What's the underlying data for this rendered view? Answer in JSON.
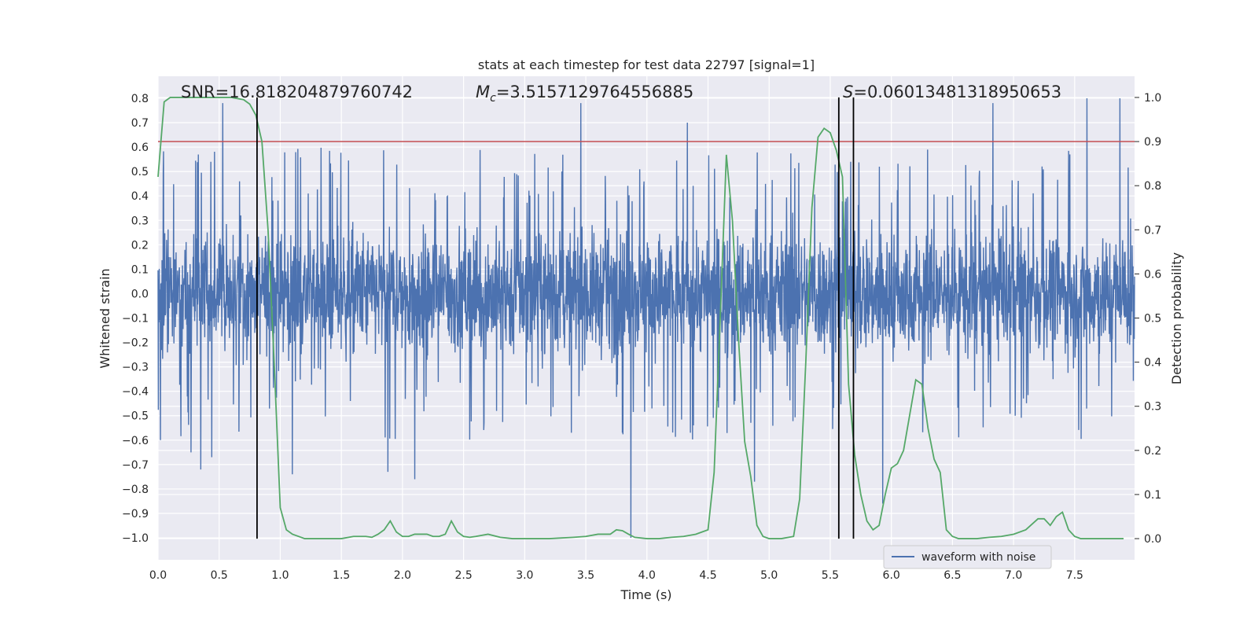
{
  "chart_data": {
    "type": "line",
    "title": "stats at each timestep for test data 22797 [signal=1]",
    "xlabel": "Time (s)",
    "ylabel": "Whitened strain",
    "y2label": "Detection probability",
    "xlim": [
      0.0,
      7.99
    ],
    "ylim": [
      -1.09,
      0.89
    ],
    "y2lim": [
      -0.048,
      1.048
    ],
    "grid": true,
    "legend_position": "bottom-right",
    "x_ticks": [
      "0.0",
      "0.5",
      "1.0",
      "1.5",
      "2.0",
      "2.5",
      "3.0",
      "3.5",
      "4.0",
      "4.5",
      "5.0",
      "5.5",
      "6.0",
      "6.5",
      "7.0",
      "7.5"
    ],
    "y_ticks": [
      "0.8",
      "0.7",
      "0.6",
      "0.5",
      "0.4",
      "0.3",
      "0.2",
      "0.1",
      "0.0",
      "−0.1",
      "−0.2",
      "−0.3",
      "−0.4",
      "−0.5",
      "−0.6",
      "−0.7",
      "−0.8",
      "−0.9",
      "−1.0"
    ],
    "y2_ticks": [
      "1.0",
      "0.9",
      "0.8",
      "0.7",
      "0.6",
      "0.5",
      "0.4",
      "0.3",
      "0.2",
      "0.1",
      "0.0"
    ],
    "annotations": {
      "snr": "SNR=16.818204879760742",
      "mc_symbol": "M",
      "mc_sub": "c",
      "mc_value": "=3.5157129764556885",
      "s_symbol": "S",
      "s_value": "=0.06013481318950653"
    },
    "vertical_lines_x": [
      0.81,
      5.57,
      5.69
    ],
    "threshold_y2": 0.9,
    "series": [
      {
        "name": "waveform with noise",
        "color": "#4c72b0",
        "description_envelope": {
          "x": [
            0.0,
            0.5,
            1.0,
            1.5,
            2.0,
            2.5,
            3.0,
            3.5,
            4.0,
            4.5,
            5.0,
            5.5,
            6.0,
            6.5,
            7.0,
            7.5,
            7.99
          ],
          "typical_max": [
            0.45,
            0.45,
            0.45,
            0.45,
            0.45,
            0.45,
            0.45,
            0.45,
            0.45,
            0.45,
            0.45,
            0.45,
            0.45,
            0.45,
            0.45,
            0.45,
            0.45
          ],
          "typical_min": [
            -0.45,
            -0.45,
            -0.45,
            -0.45,
            -0.45,
            -0.45,
            -0.45,
            -0.45,
            -0.45,
            -0.45,
            -0.45,
            -0.45,
            -0.45,
            -0.45,
            -0.45,
            -0.45,
            -0.45
          ]
        },
        "spikes": [
          {
            "x": 0.02,
            "y": -0.6
          },
          {
            "x": 0.27,
            "y": -0.65
          },
          {
            "x": 0.35,
            "y": -0.72
          },
          {
            "x": 0.44,
            "y": -0.67
          },
          {
            "x": 1.1,
            "y": -0.74
          },
          {
            "x": 1.88,
            "y": -0.73
          },
          {
            "x": 2.1,
            "y": -0.76
          },
          {
            "x": 3.46,
            "y": 0.78
          },
          {
            "x": 3.87,
            "y": -1.0
          },
          {
            "x": 4.88,
            "y": -0.77
          },
          {
            "x": 5.93,
            "y": -0.86
          },
          {
            "x": 7.6,
            "y": 0.8
          },
          {
            "x": 7.87,
            "y": 0.8
          },
          {
            "x": 0.53,
            "y": 0.78
          },
          {
            "x": 4.33,
            "y": 0.7
          },
          {
            "x": 6.83,
            "y": 0.78
          }
        ]
      },
      {
        "name": "",
        "color": "#55a868",
        "axis": "right",
        "x": [
          0.0,
          0.05,
          0.1,
          0.2,
          0.3,
          0.4,
          0.5,
          0.6,
          0.7,
          0.75,
          0.8,
          0.85,
          0.9,
          0.95,
          1.0,
          1.05,
          1.1,
          1.2,
          1.3,
          1.4,
          1.5,
          1.6,
          1.7,
          1.75,
          1.8,
          1.85,
          1.9,
          1.95,
          2.0,
          2.05,
          2.1,
          2.15,
          2.2,
          2.25,
          2.3,
          2.35,
          2.4,
          2.45,
          2.5,
          2.55,
          2.6,
          2.7,
          2.8,
          2.9,
          3.0,
          3.2,
          3.4,
          3.5,
          3.6,
          3.7,
          3.75,
          3.8,
          3.85,
          3.9,
          4.0,
          4.1,
          4.2,
          4.3,
          4.4,
          4.5,
          4.55,
          4.6,
          4.65,
          4.7,
          4.75,
          4.8,
          4.85,
          4.9,
          4.95,
          5.0,
          5.05,
          5.1,
          5.2,
          5.25,
          5.3,
          5.35,
          5.4,
          5.45,
          5.5,
          5.55,
          5.6,
          5.65,
          5.7,
          5.75,
          5.8,
          5.85,
          5.9,
          5.95,
          6.0,
          6.05,
          6.1,
          6.15,
          6.2,
          6.25,
          6.3,
          6.35,
          6.4,
          6.45,
          6.5,
          6.55,
          6.6,
          6.65,
          6.7,
          6.8,
          6.9,
          7.0,
          7.1,
          7.2,
          7.25,
          7.3,
          7.35,
          7.4,
          7.45,
          7.5,
          7.55,
          7.6,
          7.65,
          7.7,
          7.75,
          7.8,
          7.9
        ],
        "y": [
          0.82,
          0.99,
          1.0,
          1.0,
          1.0,
          1.0,
          1.0,
          1.0,
          0.995,
          0.985,
          0.96,
          0.9,
          0.7,
          0.4,
          0.07,
          0.02,
          0.01,
          0.0,
          0.0,
          0.0,
          0.0,
          0.005,
          0.005,
          0.003,
          0.01,
          0.02,
          0.04,
          0.015,
          0.005,
          0.005,
          0.01,
          0.01,
          0.01,
          0.005,
          0.005,
          0.01,
          0.04,
          0.015,
          0.005,
          0.003,
          0.005,
          0.01,
          0.003,
          0.0,
          0.0,
          0.0,
          0.003,
          0.005,
          0.01,
          0.01,
          0.02,
          0.018,
          0.01,
          0.003,
          0.0,
          0.0,
          0.003,
          0.005,
          0.01,
          0.02,
          0.15,
          0.5,
          0.87,
          0.72,
          0.45,
          0.22,
          0.14,
          0.03,
          0.005,
          0.0,
          0.0,
          0.0,
          0.005,
          0.09,
          0.4,
          0.75,
          0.91,
          0.93,
          0.92,
          0.88,
          0.82,
          0.35,
          0.19,
          0.1,
          0.04,
          0.02,
          0.03,
          0.1,
          0.16,
          0.17,
          0.2,
          0.28,
          0.36,
          0.35,
          0.25,
          0.18,
          0.15,
          0.02,
          0.005,
          0.0,
          0.0,
          0.0,
          0.0,
          0.003,
          0.005,
          0.01,
          0.02,
          0.045,
          0.045,
          0.03,
          0.05,
          0.06,
          0.02,
          0.005,
          0.0,
          0.0,
          0.0,
          0.0,
          0.0,
          0.0,
          0.0
        ]
      }
    ]
  }
}
